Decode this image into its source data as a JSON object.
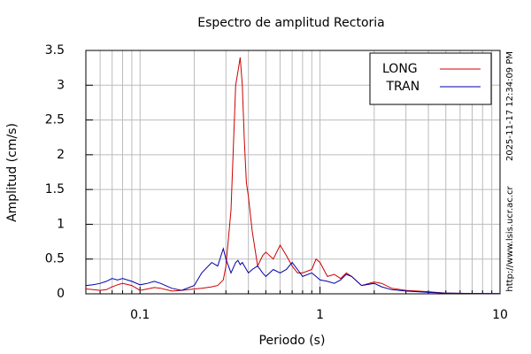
{
  "chart_data": {
    "type": "line",
    "title": "Espectro de amplitud Rectoria",
    "xlabel": "Periodo (s)",
    "ylabel": "Amplitud (cm/s)",
    "side_texts": [
      "2025-11-17 12:34:09 PM",
      "http://www.lsis.ucr.ac.cr"
    ],
    "xscale": "log",
    "xlim": [
      0.05,
      10
    ],
    "xticks": [
      0.1,
      1,
      10
    ],
    "minor_xticks": [
      0.06,
      0.07,
      0.08,
      0.09,
      0.2,
      0.3,
      0.4,
      0.5,
      0.6,
      0.7,
      0.8,
      0.9,
      2,
      3,
      4,
      5,
      6,
      7,
      8,
      9
    ],
    "ylim": [
      0,
      3.5
    ],
    "yticks": [
      0,
      0.5,
      1,
      1.5,
      2,
      2.5,
      3,
      3.5
    ],
    "grid": true,
    "legend": "upper right",
    "x": [
      0.05,
      0.055,
      0.06,
      0.065,
      0.07,
      0.075,
      0.08,
      0.09,
      0.1,
      0.11,
      0.12,
      0.13,
      0.15,
      0.17,
      0.2,
      0.22,
      0.25,
      0.27,
      0.29,
      0.3,
      0.32,
      0.34,
      0.35,
      0.36,
      0.37,
      0.38,
      0.39,
      0.4,
      0.42,
      0.45,
      0.48,
      0.5,
      0.55,
      0.6,
      0.65,
      0.7,
      0.75,
      0.8,
      0.9,
      0.95,
      1.0,
      1.1,
      1.2,
      1.3,
      1.4,
      1.5,
      1.7,
      2.0,
      2.2,
      2.5,
      3,
      4,
      5,
      7,
      10
    ],
    "series": [
      {
        "name": "LONG",
        "color": "#cc0000",
        "values": [
          0.07,
          0.06,
          0.05,
          0.06,
          0.1,
          0.13,
          0.15,
          0.12,
          0.05,
          0.07,
          0.09,
          0.08,
          0.04,
          0.05,
          0.07,
          0.08,
          0.1,
          0.12,
          0.2,
          0.4,
          1.2,
          3.0,
          3.2,
          3.4,
          3.0,
          2.2,
          1.6,
          1.4,
          0.9,
          0.4,
          0.55,
          0.6,
          0.5,
          0.7,
          0.55,
          0.4,
          0.3,
          0.3,
          0.35,
          0.5,
          0.45,
          0.25,
          0.28,
          0.22,
          0.3,
          0.25,
          0.12,
          0.17,
          0.15,
          0.08,
          0.05,
          0.03,
          0.01,
          0.005,
          0.002
        ]
      },
      {
        "name": " TRAN",
        "color": "#0000aa",
        "values": [
          0.12,
          0.13,
          0.15,
          0.18,
          0.22,
          0.2,
          0.22,
          0.18,
          0.13,
          0.15,
          0.18,
          0.15,
          0.08,
          0.05,
          0.12,
          0.3,
          0.45,
          0.4,
          0.65,
          0.5,
          0.3,
          0.45,
          0.48,
          0.42,
          0.45,
          0.4,
          0.35,
          0.3,
          0.35,
          0.4,
          0.3,
          0.25,
          0.35,
          0.3,
          0.35,
          0.45,
          0.35,
          0.25,
          0.3,
          0.25,
          0.2,
          0.18,
          0.15,
          0.2,
          0.28,
          0.25,
          0.12,
          0.15,
          0.1,
          0.06,
          0.04,
          0.02,
          0.01,
          0.005,
          0.002
        ]
      }
    ]
  }
}
